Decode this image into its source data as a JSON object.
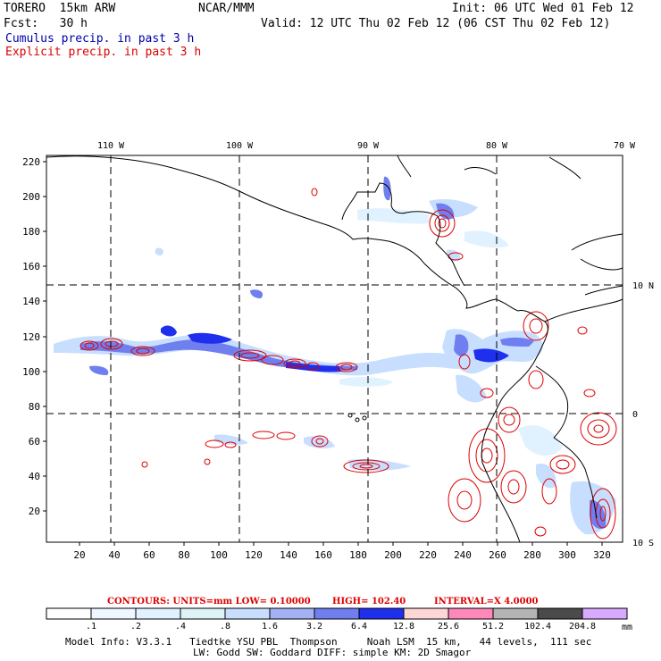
{
  "header": {
    "model": "TORERO  15km ARW",
    "org": "NCAR/MMM",
    "init": "Init: 06 UTC Wed 01 Feb 12",
    "fcst": "Fcst:   30 h",
    "valid": "Valid: 12 UTC Thu 02 Feb 12 (06 CST Thu 02 Feb 12)",
    "line_cumulus": "Cumulus precip. in past 3 h",
    "line_explicit": "Explicit precip. in past 3 h"
  },
  "colors": {
    "cumulus_text": "#0000aa",
    "explicit_text": "#dd0000",
    "contour": "#dd0000",
    "coast": "#000000",
    "grid": "#000000"
  },
  "map": {
    "top_lon_labels": [
      "110 W",
      "100 W",
      "90 W",
      "80 W",
      "70 W"
    ],
    "right_lat_labels": [
      "10 N",
      "0",
      "10 S"
    ],
    "y_ticks": [
      "220",
      "200",
      "180",
      "160",
      "140",
      "120",
      "100",
      "80",
      "60",
      "40",
      "20"
    ],
    "x_ticks": [
      "20",
      "40",
      "60",
      "80",
      "100",
      "120",
      "140",
      "160",
      "180",
      "200",
      "220",
      "240",
      "260",
      "280",
      "300",
      "320"
    ]
  },
  "contour_info": {
    "label": "CONTOURS:  UNITS=mm  LOW= 0.10000",
    "high": "HIGH=  102.40",
    "interval": "INTERVAL=X  4.0000"
  },
  "colorbar": {
    "labels": [
      ".1",
      ".2",
      ".4",
      ".8",
      "1.6",
      "3.2",
      "6.4",
      "12.8",
      "25.6",
      "51.2",
      "102.4",
      "204.8"
    ],
    "units": "mm",
    "colors": [
      "#ffffff",
      "#eef6ff",
      "#e0f2ff",
      "#ddf3f6",
      "#c8deff",
      "#a2b2f4",
      "#6f7ff0",
      "#1f2fee",
      "#ffd6d6",
      "#ff88bb",
      "#b4b4b4",
      "#4a4a4a",
      "#d8aaff"
    ]
  },
  "footer": {
    "line1": "Model Info: V3.3.1   Tiedtke YSU PBL  Thompson     Noah LSM  15 km,   44 levels,  111 sec",
    "line2": "LW: Godd SW: Goddard DIFF: simple KM: 2D Smagor"
  }
}
